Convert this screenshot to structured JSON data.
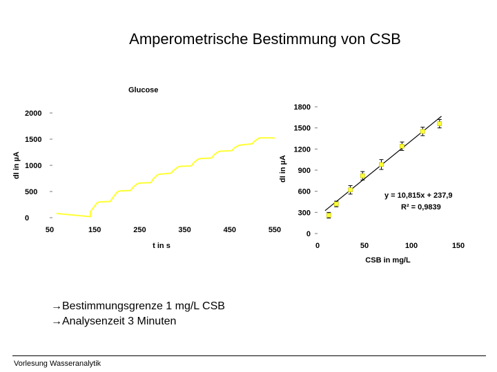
{
  "slide": {
    "title": "Amperometrische Bestimmung von CSB",
    "bullets": [
      "→Bestimmungsgrenze  1 mg/L CSB",
      "→Analysenzeit  3 Minuten"
    ],
    "footer": "Vorlesung Wasseranalytik"
  },
  "chart_data": [
    {
      "type": "line",
      "title": "Glucose",
      "xlabel": "t in s",
      "ylabel": "dI in µA",
      "xlim": [
        50,
        550
      ],
      "ylim": [
        0,
        2000
      ],
      "xticks": [
        50,
        150,
        250,
        350,
        450,
        550
      ],
      "yticks": [
        0,
        500,
        1000,
        1500,
        2000
      ],
      "color": "#ffff33",
      "series": [
        {
          "x": [
            65,
            140,
            141,
            155,
            160,
            185,
            190,
            200,
            205,
            230,
            235,
            245,
            250,
            275,
            280,
            290,
            295,
            320,
            325,
            335,
            340,
            365,
            370,
            380,
            386,
            410,
            415,
            425,
            430,
            455,
            460,
            470,
            476,
            500,
            505,
            515,
            520,
            545,
            550
          ],
          "y": [
            80,
            20,
            120,
            280,
            300,
            310,
            380,
            490,
            510,
            520,
            580,
            650,
            660,
            670,
            740,
            820,
            830,
            850,
            900,
            970,
            980,
            990,
            1050,
            1120,
            1130,
            1140,
            1200,
            1260,
            1270,
            1280,
            1330,
            1380,
            1390,
            1410,
            1460,
            1520,
            1525,
            1525,
            1520
          ]
        }
      ]
    },
    {
      "type": "scatter",
      "xlabel": "CSB in mg/L",
      "ylabel": "dI in µA",
      "xlim": [
        0,
        150
      ],
      "ylim": [
        0,
        1800
      ],
      "xticks": [
        0,
        50,
        100,
        150
      ],
      "yticks": [
        0,
        300,
        600,
        900,
        1200,
        1500,
        1800
      ],
      "equation": "y = 10,815x + 237,9",
      "r2": "R² = 0,9839",
      "series": [
        {
          "name": "points",
          "x": [
            12,
            20,
            35,
            48,
            68,
            90,
            112,
            130
          ],
          "y": [
            260,
            420,
            620,
            820,
            980,
            1240,
            1450,
            1560
          ],
          "err": [
            40,
            40,
            60,
            60,
            70,
            60,
            60,
            60
          ]
        }
      ],
      "fit": {
        "slope": 10.815,
        "intercept": 237.9,
        "xrange": [
          8,
          132
        ]
      }
    }
  ]
}
